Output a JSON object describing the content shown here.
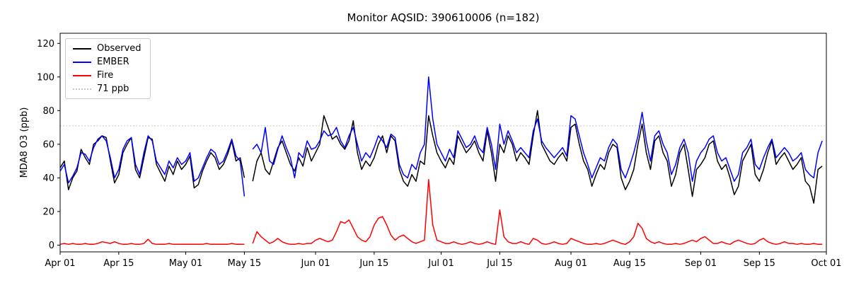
{
  "title": "Monitor AQSID: 390610006 (n=182)",
  "chart_data": {
    "type": "line",
    "title": "Monitor AQSID: 390610006 (n=182)",
    "xlabel": "",
    "ylabel": "MDA8 O3 (ppb)",
    "ylim": [
      -4,
      126
    ],
    "yticks": [
      0,
      20,
      40,
      60,
      80,
      100,
      120
    ],
    "xtick_labels": [
      "Apr 01",
      "Apr 15",
      "May 01",
      "May 15",
      "Jun 01",
      "Jun 15",
      "Jul 01",
      "Jul 15",
      "Aug 01",
      "Aug 15",
      "Sep 01",
      "Sep 15",
      "Oct 01"
    ],
    "xtick_days": [
      0,
      14,
      30,
      44,
      61,
      75,
      91,
      105,
      122,
      136,
      153,
      167,
      183
    ],
    "x_range_days": [
      0,
      183
    ],
    "grid": false,
    "legend_position": "upper left",
    "legend": [
      "Observed",
      "EMBER",
      "Fire",
      "71 ppb"
    ],
    "threshold": {
      "value": 71,
      "label": "71 ppb",
      "color": "#c8c8c8",
      "style": "dotted"
    },
    "series": [
      {
        "name": "Observed",
        "color": "#000000",
        "values": [
          46,
          50,
          33,
          40,
          44,
          57,
          52,
          48,
          60,
          62,
          65,
          64,
          50,
          37,
          42,
          55,
          60,
          64,
          45,
          40,
          52,
          64,
          63,
          48,
          43,
          38,
          47,
          42,
          50,
          45,
          48,
          53,
          34,
          36,
          44,
          50,
          55,
          52,
          45,
          48,
          54,
          62,
          50,
          52,
          40,
          null,
          38,
          50,
          55,
          45,
          42,
          50,
          58,
          62,
          55,
          48,
          44,
          52,
          47,
          58,
          50,
          55,
          60,
          77,
          70,
          63,
          65,
          60,
          57,
          62,
          74,
          55,
          45,
          50,
          47,
          52,
          60,
          65,
          55,
          65,
          62,
          45,
          38,
          35,
          42,
          38,
          50,
          48,
          77,
          65,
          55,
          50,
          46,
          52,
          48,
          65,
          60,
          55,
          58,
          62,
          55,
          50,
          68,
          55,
          38,
          60,
          55,
          65,
          60,
          50,
          55,
          52,
          48,
          65,
          80,
          60,
          55,
          50,
          48,
          52,
          55,
          50,
          70,
          72,
          60,
          50,
          45,
          35,
          42,
          48,
          45,
          55,
          60,
          58,
          40,
          33,
          38,
          45,
          60,
          72,
          55,
          45,
          62,
          65,
          55,
          50,
          35,
          42,
          55,
          60,
          45,
          29,
          45,
          48,
          52,
          60,
          62,
          50,
          45,
          48,
          40,
          30,
          35,
          50,
          55,
          60,
          42,
          38,
          45,
          55,
          62,
          48,
          52,
          55,
          50,
          45,
          48,
          52,
          38,
          35,
          25,
          45,
          47
        ]
      },
      {
        "name": "EMBER",
        "color": "#0000ff",
        "values": [
          44,
          48,
          37,
          41,
          46,
          55,
          54,
          50,
          58,
          63,
          65,
          62,
          52,
          40,
          45,
          57,
          62,
          64,
          48,
          42,
          55,
          65,
          62,
          50,
          46,
          42,
          50,
          46,
          52,
          48,
          50,
          55,
          38,
          40,
          46,
          52,
          57,
          55,
          48,
          50,
          56,
          63,
          53,
          50,
          29,
          null,
          57,
          60,
          55,
          70,
          50,
          48,
          57,
          65,
          58,
          52,
          40,
          55,
          52,
          62,
          57,
          58,
          62,
          68,
          65,
          66,
          70,
          62,
          58,
          65,
          70,
          60,
          50,
          55,
          52,
          58,
          65,
          62,
          58,
          66,
          64,
          48,
          42,
          40,
          48,
          45,
          55,
          60,
          100,
          75,
          60,
          55,
          50,
          57,
          52,
          68,
          63,
          58,
          60,
          65,
          58,
          55,
          70,
          60,
          45,
          72,
          60,
          68,
          62,
          55,
          58,
          55,
          52,
          68,
          75,
          62,
          58,
          55,
          52,
          55,
          58,
          53,
          77,
          75,
          65,
          55,
          48,
          40,
          46,
          52,
          50,
          58,
          63,
          60,
          45,
          40,
          47,
          55,
          65,
          79,
          62,
          50,
          65,
          68,
          60,
          55,
          42,
          48,
          58,
          63,
          55,
          38,
          50,
          55,
          58,
          63,
          65,
          55,
          50,
          52,
          45,
          38,
          42,
          55,
          58,
          63,
          48,
          45,
          52,
          58,
          63,
          52,
          55,
          58,
          55,
          50,
          52,
          55,
          45,
          42,
          40,
          55,
          62
        ]
      },
      {
        "name": "Fire",
        "color": "#ff0000",
        "values": [
          0.5,
          1,
          0.5,
          1,
          0.5,
          0.5,
          1,
          0.5,
          0.5,
          1,
          2,
          1.5,
          1,
          2,
          1,
          0.5,
          0.5,
          1,
          0.5,
          0.5,
          1,
          3.5,
          1,
          0.5,
          0.5,
          0.5,
          1,
          0.5,
          0.5,
          0.5,
          0.5,
          0.5,
          0.5,
          0.5,
          0.5,
          1,
          0.5,
          0.5,
          0.5,
          0.5,
          0.5,
          1,
          0.5,
          0.5,
          0.5,
          null,
          1,
          8,
          5,
          3,
          1,
          2,
          4,
          2,
          1,
          0.5,
          0.5,
          1,
          0.5,
          1,
          1,
          3,
          4,
          3,
          2,
          3,
          8,
          14,
          13,
          15,
          10,
          5,
          3,
          2,
          5,
          12,
          16,
          17,
          12,
          6,
          3,
          5,
          6,
          4,
          2,
          1,
          2,
          3,
          39,
          12,
          3,
          2,
          1,
          1,
          2,
          1,
          0.5,
          1,
          2,
          1,
          0.5,
          1,
          2,
          1,
          0.5,
          21,
          5,
          2,
          1,
          1,
          2,
          1,
          0.5,
          4,
          3,
          1,
          0.5,
          1,
          2,
          1,
          0.5,
          1,
          4,
          3,
          2,
          1,
          0.5,
          0.5,
          1,
          0.5,
          1,
          2,
          3,
          2,
          1,
          0.5,
          2,
          5,
          13,
          10,
          4,
          2,
          1,
          2,
          1,
          0.5,
          0.5,
          1,
          0.5,
          1,
          2,
          3,
          2,
          4,
          5,
          3,
          1,
          1,
          2,
          1,
          0.5,
          2,
          3,
          2,
          1,
          0.5,
          1,
          3,
          4,
          2,
          1,
          0.5,
          1,
          2,
          1,
          1,
          0.5,
          1,
          0.5,
          0.5,
          1,
          0.5,
          0.5
        ]
      }
    ]
  }
}
